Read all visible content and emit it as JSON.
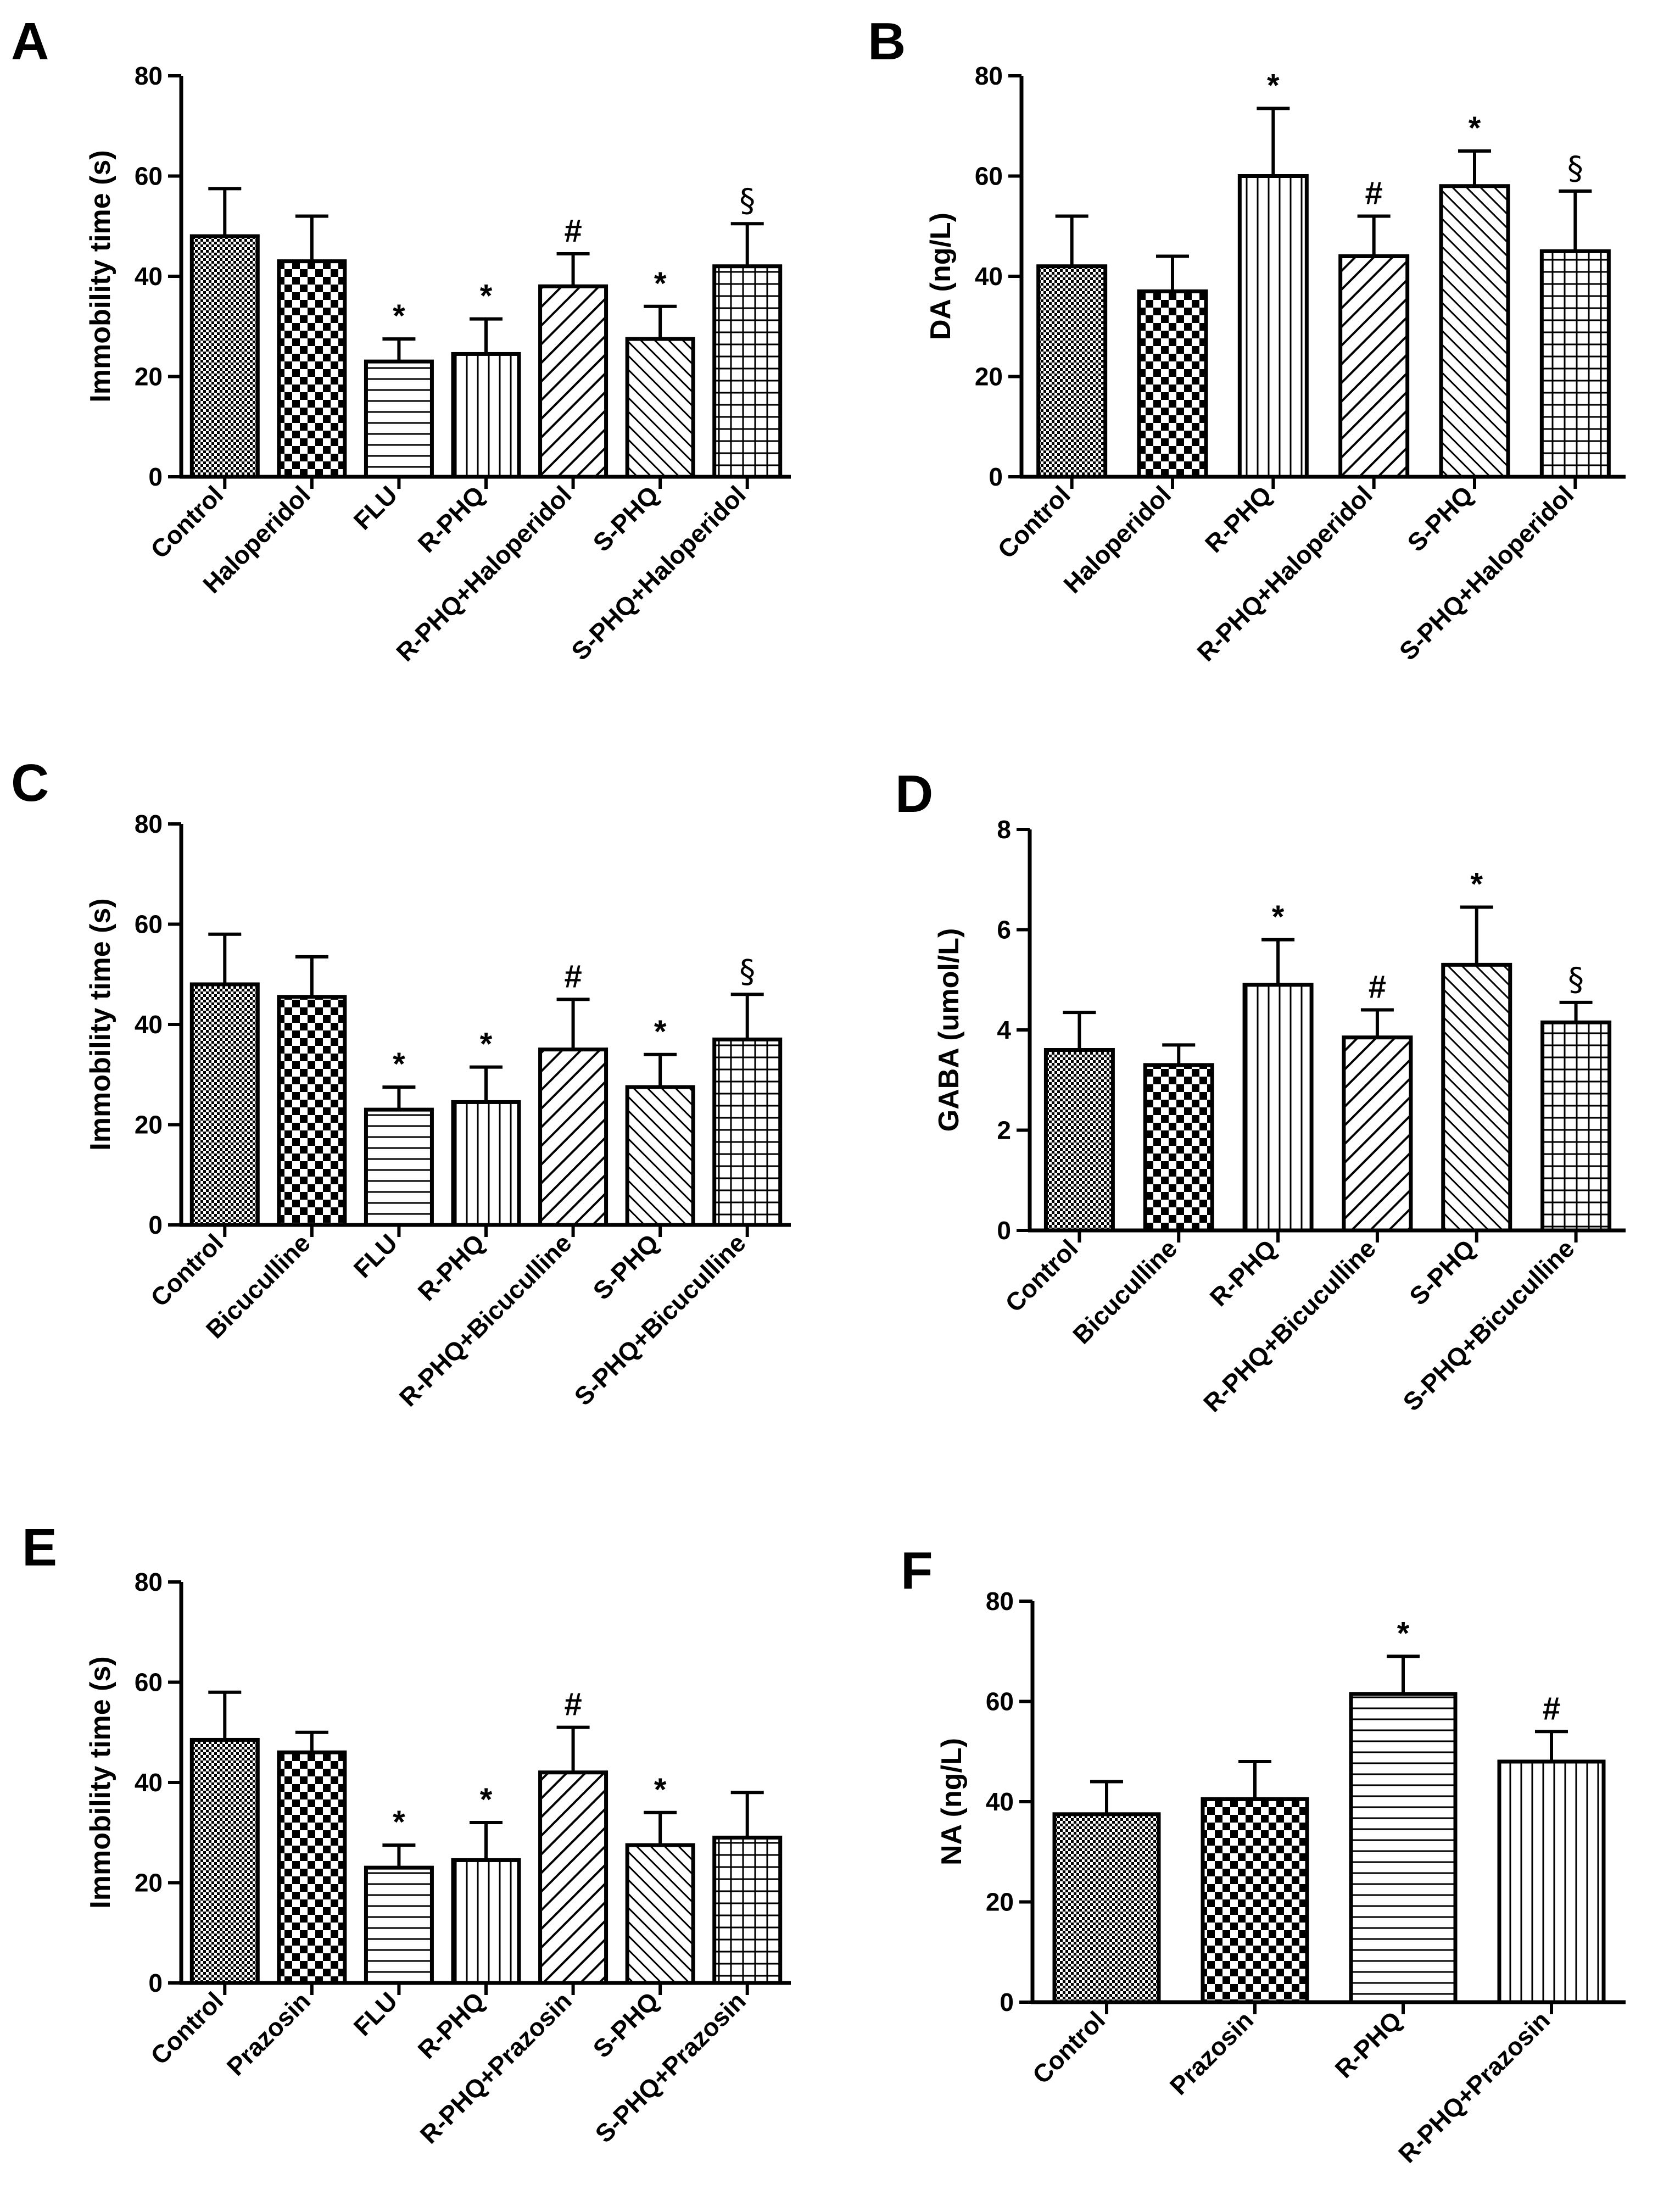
{
  "figure": {
    "background": "#ffffff",
    "ink": "#000000"
  },
  "chart_data": [
    {
      "panel": "A",
      "type": "bar",
      "title": "",
      "xlabel": "",
      "ylabel": "Immobility time (s)",
      "ylim": [
        0,
        80
      ],
      "yticks": [
        0,
        20,
        40,
        60,
        80
      ],
      "grid": false,
      "categories": [
        "Control",
        "Haloperidol",
        "FLU",
        "R-PHQ",
        "R-PHQ+Haloperidol",
        "S-PHQ",
        "S-PHQ+Haloperidol"
      ],
      "values": [
        48,
        43,
        23,
        24.5,
        38,
        27.5,
        42
      ],
      "errors": [
        9.5,
        9,
        4.5,
        7,
        6.5,
        6.5,
        8.5
      ],
      "annotations": [
        "",
        "",
        "*",
        "*",
        "#",
        "*",
        "§"
      ],
      "patterns": [
        "fine-check",
        "checker",
        "horizontal",
        "vertical",
        "diag-wide",
        "diag-back",
        "grid"
      ]
    },
    {
      "panel": "B",
      "type": "bar",
      "title": "",
      "xlabel": "",
      "ylabel": "DA (ng/L)",
      "ylim": [
        0,
        80
      ],
      "yticks": [
        0,
        20,
        40,
        60,
        80
      ],
      "grid": false,
      "categories": [
        "Control",
        "Haloperidol",
        "R-PHQ",
        "R-PHQ+Haloperidol",
        "S-PHQ",
        "S-PHQ+Haloperidol"
      ],
      "values": [
        42,
        37,
        60,
        44,
        58,
        45
      ],
      "errors": [
        10,
        7,
        13.5,
        8,
        7,
        12
      ],
      "annotations": [
        "",
        "",
        "*",
        "#",
        "*",
        "§"
      ],
      "patterns": [
        "fine-check",
        "checker",
        "vertical",
        "diag-wide",
        "diag-back",
        "grid"
      ]
    },
    {
      "panel": "C",
      "type": "bar",
      "title": "",
      "xlabel": "",
      "ylabel": "Immobility time (s)",
      "ylim": [
        0,
        80
      ],
      "yticks": [
        0,
        20,
        40,
        60,
        80
      ],
      "grid": false,
      "categories": [
        "Control",
        "Bicuculline",
        "FLU",
        "R-PHQ",
        "R-PHQ+Bicuculline",
        "S-PHQ",
        "S-PHQ+Bicuculline"
      ],
      "values": [
        48,
        45.5,
        23,
        24.5,
        35,
        27.5,
        37
      ],
      "errors": [
        10,
        8,
        4.5,
        7,
        10,
        6.5,
        9
      ],
      "annotations": [
        "",
        "",
        "*",
        "*",
        "#",
        "*",
        "§"
      ],
      "patterns": [
        "fine-check",
        "checker",
        "horizontal",
        "vertical",
        "diag-wide",
        "diag-back",
        "grid"
      ]
    },
    {
      "panel": "D",
      "type": "bar",
      "title": "",
      "xlabel": "",
      "ylabel": "GABA (umol/L)",
      "ylim": [
        0,
        8
      ],
      "yticks": [
        0,
        2,
        4,
        6,
        8
      ],
      "grid": false,
      "categories": [
        "Control",
        "Bicuculline",
        "R-PHQ",
        "R-PHQ+Bicuculline",
        "S-PHQ",
        "S-PHQ+Bicuculline"
      ],
      "values": [
        3.6,
        3.3,
        4.9,
        3.85,
        5.3,
        4.15
      ],
      "errors": [
        0.75,
        0.4,
        0.9,
        0.55,
        1.15,
        0.4
      ],
      "annotations": [
        "",
        "",
        "*",
        "#",
        "*",
        "§"
      ],
      "patterns": [
        "fine-check",
        "checker",
        "vertical",
        "diag-wide",
        "diag-back",
        "grid"
      ]
    },
    {
      "panel": "E",
      "type": "bar",
      "title": "",
      "xlabel": "",
      "ylabel": "Immobility time (s)",
      "ylim": [
        0,
        80
      ],
      "yticks": [
        0,
        20,
        40,
        60,
        80
      ],
      "grid": false,
      "categories": [
        "Control",
        "Prazosin",
        "FLU",
        "R-PHQ",
        "R-PHQ+Prazosin",
        "S-PHQ",
        "S-PHQ+Prazosin"
      ],
      "values": [
        48.5,
        46,
        23,
        24.5,
        42,
        27.5,
        29
      ],
      "errors": [
        9.5,
        4,
        4.5,
        7.5,
        9,
        6.5,
        9
      ],
      "annotations": [
        "",
        "",
        "*",
        "*",
        "#",
        "*",
        ""
      ],
      "patterns": [
        "fine-check",
        "checker",
        "horizontal",
        "vertical",
        "diag-wide",
        "diag-back",
        "grid"
      ]
    },
    {
      "panel": "F",
      "type": "bar",
      "title": "",
      "xlabel": "",
      "ylabel": "NA (ng/L)",
      "ylim": [
        0,
        80
      ],
      "yticks": [
        0,
        20,
        40,
        60,
        80
      ],
      "grid": false,
      "categories": [
        "Control",
        "Prazosin",
        "R-PHQ",
        "R-PHQ+Prazosin"
      ],
      "values": [
        37.5,
        40.5,
        61.5,
        48
      ],
      "errors": [
        6.5,
        7.5,
        7.5,
        6
      ],
      "annotations": [
        "",
        "",
        "*",
        "#"
      ],
      "patterns": [
        "fine-check",
        "checker",
        "horizontal",
        "vertical"
      ]
    }
  ]
}
